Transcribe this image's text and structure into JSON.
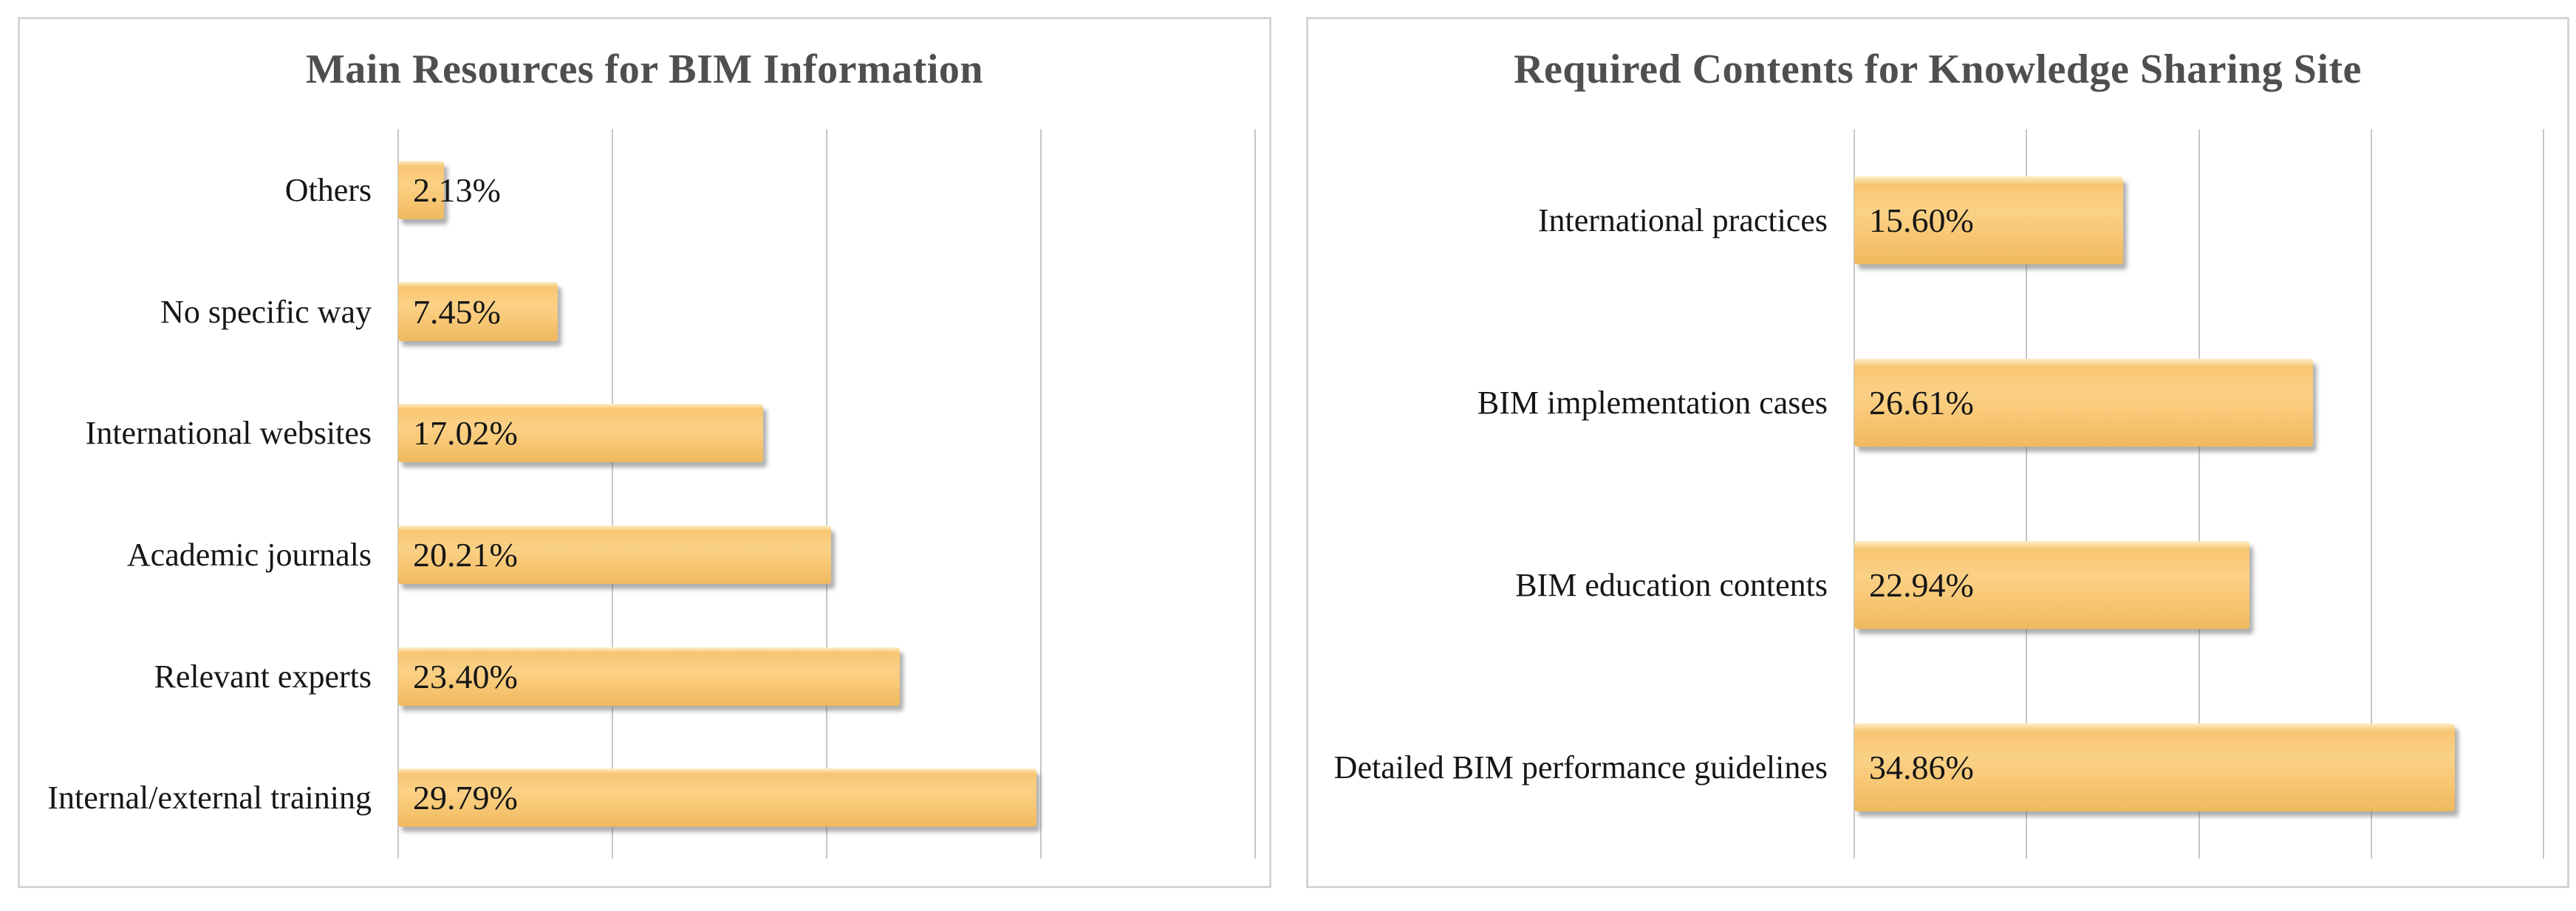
{
  "figure": {
    "description": "Two horizontal bar charts from a survey, shown side by side in light-bordered panels",
    "background": "#ffffff"
  },
  "colors": {
    "panel_border": "#d5d5d5",
    "title": "#4f4f4f",
    "label": "#161616",
    "gridline": "#c6c6c6",
    "bar_highlight": "#fdedc6",
    "bar_top": "#f7c672",
    "bar_mid": "#fbd186",
    "bar_mid2": "#f8c977",
    "bar_low": "#efb95e",
    "bar_shadow": "rgba(110,110,110,0.55)"
  },
  "chart_data": [
    {
      "type": "bar",
      "orientation": "horizontal",
      "title": "Main Resources for BIM Information",
      "categories": [
        "Others",
        "No specific way",
        "International websites",
        "Academic journals",
        "Relevant experts",
        "Internal/external training"
      ],
      "values": [
        2.13,
        7.45,
        17.02,
        20.21,
        23.4,
        29.79
      ],
      "labels": [
        "2.13%",
        "7.45%",
        "17.02%",
        "20.21%",
        "23.40%",
        "29.79%"
      ],
      "xlabel": "",
      "ylabel": "",
      "xlim": [
        0,
        40
      ],
      "gridline_step": 10,
      "grid": true,
      "legend_position": "none",
      "tick_labels_visible": false,
      "data_label_position": "inside-base",
      "bar_color": "#f9c873"
    },
    {
      "type": "bar",
      "orientation": "horizontal",
      "title": "Required Contents for Knowledge Sharing Site",
      "categories": [
        "International practices",
        "BIM implementation cases",
        "BIM education contents",
        "Detailed BIM performance guidelines"
      ],
      "values": [
        15.6,
        26.61,
        22.94,
        34.86
      ],
      "labels": [
        "15.60%",
        "26.61%",
        "22.94%",
        "34.86%"
      ],
      "xlabel": "",
      "ylabel": "",
      "xlim": [
        0,
        40
      ],
      "gridline_step": 10,
      "grid": true,
      "legend_position": "none",
      "tick_labels_visible": false,
      "data_label_position": "inside-base",
      "bar_color": "#f9c873"
    }
  ]
}
